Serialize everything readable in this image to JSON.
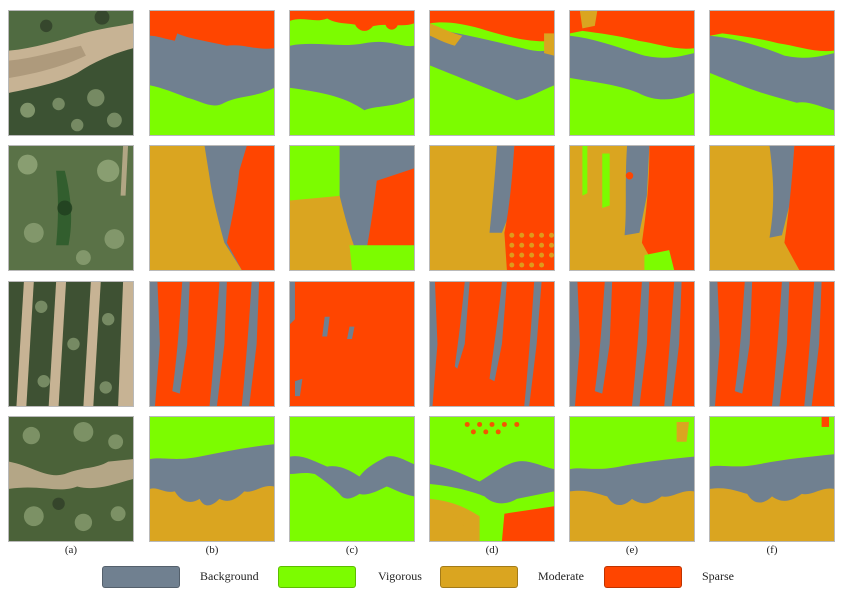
{
  "figure": {
    "column_labels": [
      "(a)",
      "(b)",
      "(c)",
      "(d)",
      "(e)",
      "(f)"
    ],
    "legend": [
      {
        "label": "Background",
        "color": "#708090"
      },
      {
        "label": "Vigorous",
        "color": "#7cfc00"
      },
      {
        "label": "Moderate",
        "color": "#daa520"
      },
      {
        "label": "Sparse",
        "color": "#ff4500"
      }
    ],
    "colors": {
      "background": "#708090",
      "vigorous": "#7cfc00",
      "moderate": "#daa520",
      "sparse": "#ff4500",
      "foliage_dark": "#2f3f28",
      "foliage_light": "#9cb183",
      "soil": "#c7b394"
    }
  }
}
